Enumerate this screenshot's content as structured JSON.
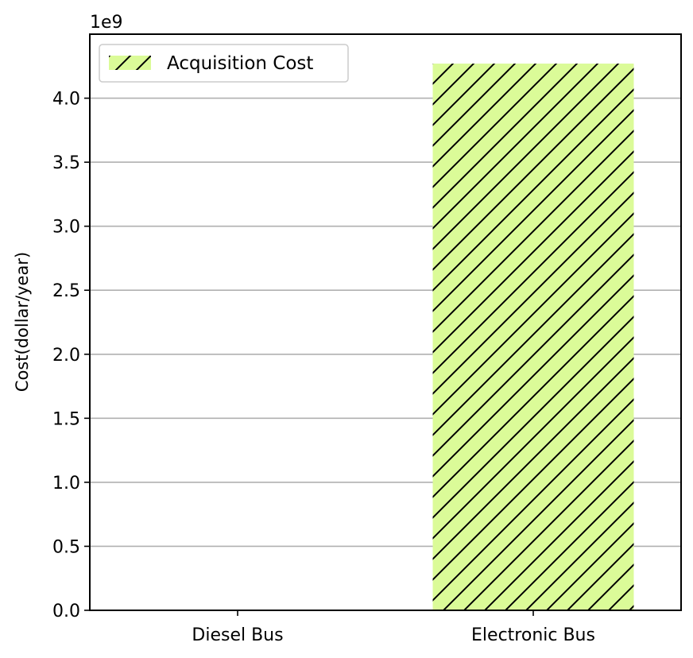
{
  "chart_data": {
    "type": "bar",
    "categories": [
      "Diesel Bus",
      "Electronic Bus"
    ],
    "series": [
      {
        "name": "Acquisition Cost",
        "values": [
          0,
          4270000000
        ],
        "color": "#dbfb98",
        "hatch": "/"
      }
    ],
    "ylabel": "Cost(dollar/year)",
    "xlabel": "",
    "ylim": [
      0,
      4500000000
    ],
    "yticks": [
      0,
      500000000,
      1000000000,
      1500000000,
      2000000000,
      2500000000,
      3000000000,
      3500000000,
      4000000000
    ],
    "ytick_labels": [
      "0.0",
      "0.5",
      "1.0",
      "1.5",
      "2.0",
      "2.5",
      "3.0",
      "3.5",
      "4.0"
    ],
    "y_offset_label": "1e9",
    "grid": "y",
    "legend_position": "top-left"
  }
}
